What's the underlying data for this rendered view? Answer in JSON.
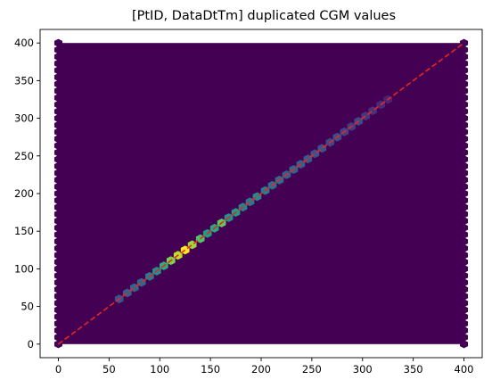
{
  "chart_data": {
    "type": "hexbin",
    "title": "[PtID, DataDtTm] duplicated CGM values",
    "xlabel": "",
    "ylabel": "",
    "xlim": [
      -18,
      418
    ],
    "ylim": [
      -18,
      418
    ],
    "xticks": [
      0,
      50,
      100,
      150,
      200,
      250,
      300,
      350,
      400
    ],
    "yticks": [
      0,
      50,
      100,
      150,
      200,
      250,
      300,
      350,
      400
    ],
    "grid": false,
    "colormap": "viridis",
    "background_bin_color": "#440154",
    "extent": [
      0,
      400,
      0,
      400
    ],
    "reference_line": {
      "x": [
        0,
        400
      ],
      "y": [
        0,
        400
      ],
      "color": "#e8261d",
      "style": "dashed"
    },
    "highlight_bins": [
      {
        "value": 60,
        "intensity": 0.25
      },
      {
        "value": 68,
        "intensity": 0.3
      },
      {
        "value": 75,
        "intensity": 0.32
      },
      {
        "value": 82,
        "intensity": 0.33
      },
      {
        "value": 90,
        "intensity": 0.42
      },
      {
        "value": 97,
        "intensity": 0.5
      },
      {
        "value": 104,
        "intensity": 0.62
      },
      {
        "value": 111,
        "intensity": 0.8
      },
      {
        "value": 118,
        "intensity": 0.9
      },
      {
        "value": 125,
        "intensity": 1.0
      },
      {
        "value": 132,
        "intensity": 0.85
      },
      {
        "value": 140,
        "intensity": 0.72
      },
      {
        "value": 147,
        "intensity": 0.55
      },
      {
        "value": 154,
        "intensity": 0.6
      },
      {
        "value": 161,
        "intensity": 0.75
      },
      {
        "value": 168,
        "intensity": 0.5
      },
      {
        "value": 175,
        "intensity": 0.55
      },
      {
        "value": 182,
        "intensity": 0.45
      },
      {
        "value": 189,
        "intensity": 0.4
      },
      {
        "value": 196,
        "intensity": 0.48
      },
      {
        "value": 204,
        "intensity": 0.42
      },
      {
        "value": 211,
        "intensity": 0.36
      },
      {
        "value": 218,
        "intensity": 0.34
      },
      {
        "value": 225,
        "intensity": 0.3
      },
      {
        "value": 232,
        "intensity": 0.32
      },
      {
        "value": 239,
        "intensity": 0.3
      },
      {
        "value": 246,
        "intensity": 0.28
      },
      {
        "value": 253,
        "intensity": 0.26
      },
      {
        "value": 260,
        "intensity": 0.25
      },
      {
        "value": 268,
        "intensity": 0.22
      },
      {
        "value": 275,
        "intensity": 0.24
      },
      {
        "value": 282,
        "intensity": 0.2
      },
      {
        "value": 289,
        "intensity": 0.18
      },
      {
        "value": 296,
        "intensity": 0.22
      },
      {
        "value": 303,
        "intensity": 0.16
      },
      {
        "value": 310,
        "intensity": 0.14
      },
      {
        "value": 318,
        "intensity": 0.12
      },
      {
        "value": 325,
        "intensity": 0.1
      }
    ]
  }
}
